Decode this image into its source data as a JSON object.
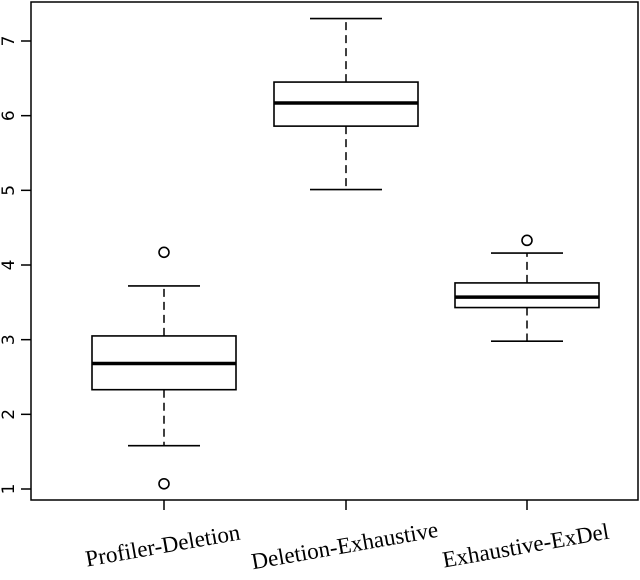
{
  "chart_data": {
    "type": "boxplot",
    "title": "",
    "xlabel": "",
    "ylabel": "",
    "ylim": [
      0.8,
      7.5
    ],
    "yticks": [
      1,
      2,
      3,
      4,
      5,
      6,
      7
    ],
    "grid": false,
    "categories": [
      "Profiler-Deletion",
      "Deletion-Exhaustive",
      "Exhaustive-ExDel"
    ],
    "boxes": [
      {
        "label": "Profiler-Deletion",
        "whisker_low": 1.58,
        "q1": 2.33,
        "median": 2.68,
        "q3": 3.05,
        "whisker_high": 3.72,
        "outliers": [
          4.17,
          1.07
        ]
      },
      {
        "label": "Deletion-Exhaustive",
        "whisker_low": 5.01,
        "q1": 5.86,
        "median": 6.17,
        "q3": 6.45,
        "whisker_high": 7.3,
        "outliers": []
      },
      {
        "label": "Exhaustive-ExDel",
        "whisker_low": 2.98,
        "q1": 3.43,
        "median": 3.57,
        "q3": 3.76,
        "whisker_high": 4.16,
        "outliers": [
          4.33
        ]
      }
    ]
  }
}
